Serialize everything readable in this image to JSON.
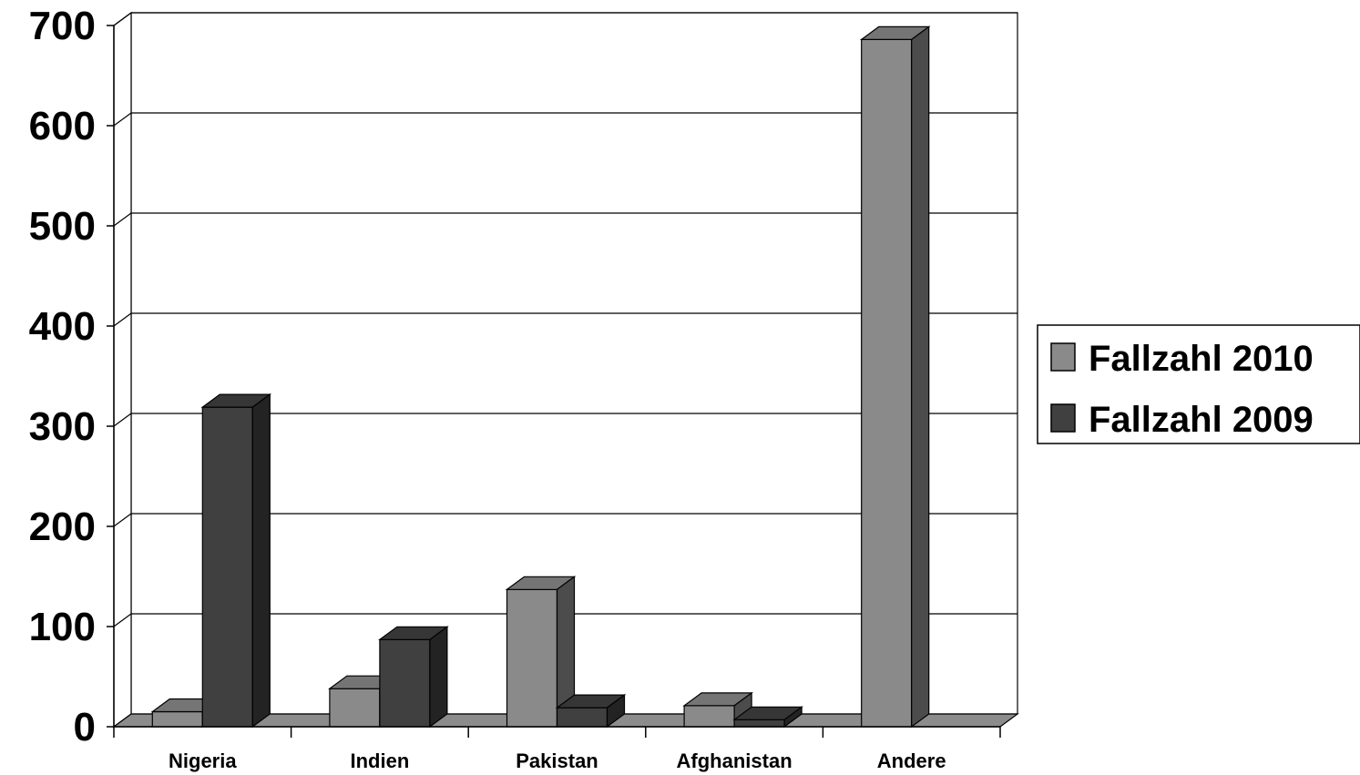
{
  "chart_data": {
    "type": "bar",
    "title": "",
    "xlabel": "",
    "ylabel": "",
    "categories": [
      "Nigeria",
      "Indien",
      "Pakistan",
      "Afghanistan",
      "Andere"
    ],
    "series": [
      {
        "name": "Fallzahl 2010",
        "values": [
          15,
          38,
          137,
          21,
          686
        ],
        "color": "#8a8a8a"
      },
      {
        "name": "Fallzahl 2009",
        "values": [
          319,
          87,
          19,
          7,
          0
        ],
        "color": "#404040"
      }
    ],
    "ylim": [
      0,
      700
    ],
    "yticks": [
      "0",
      "100",
      "200",
      "300",
      "400",
      "500",
      "600",
      "700"
    ],
    "grid": true,
    "style_3d": true,
    "legend_position": "right"
  }
}
